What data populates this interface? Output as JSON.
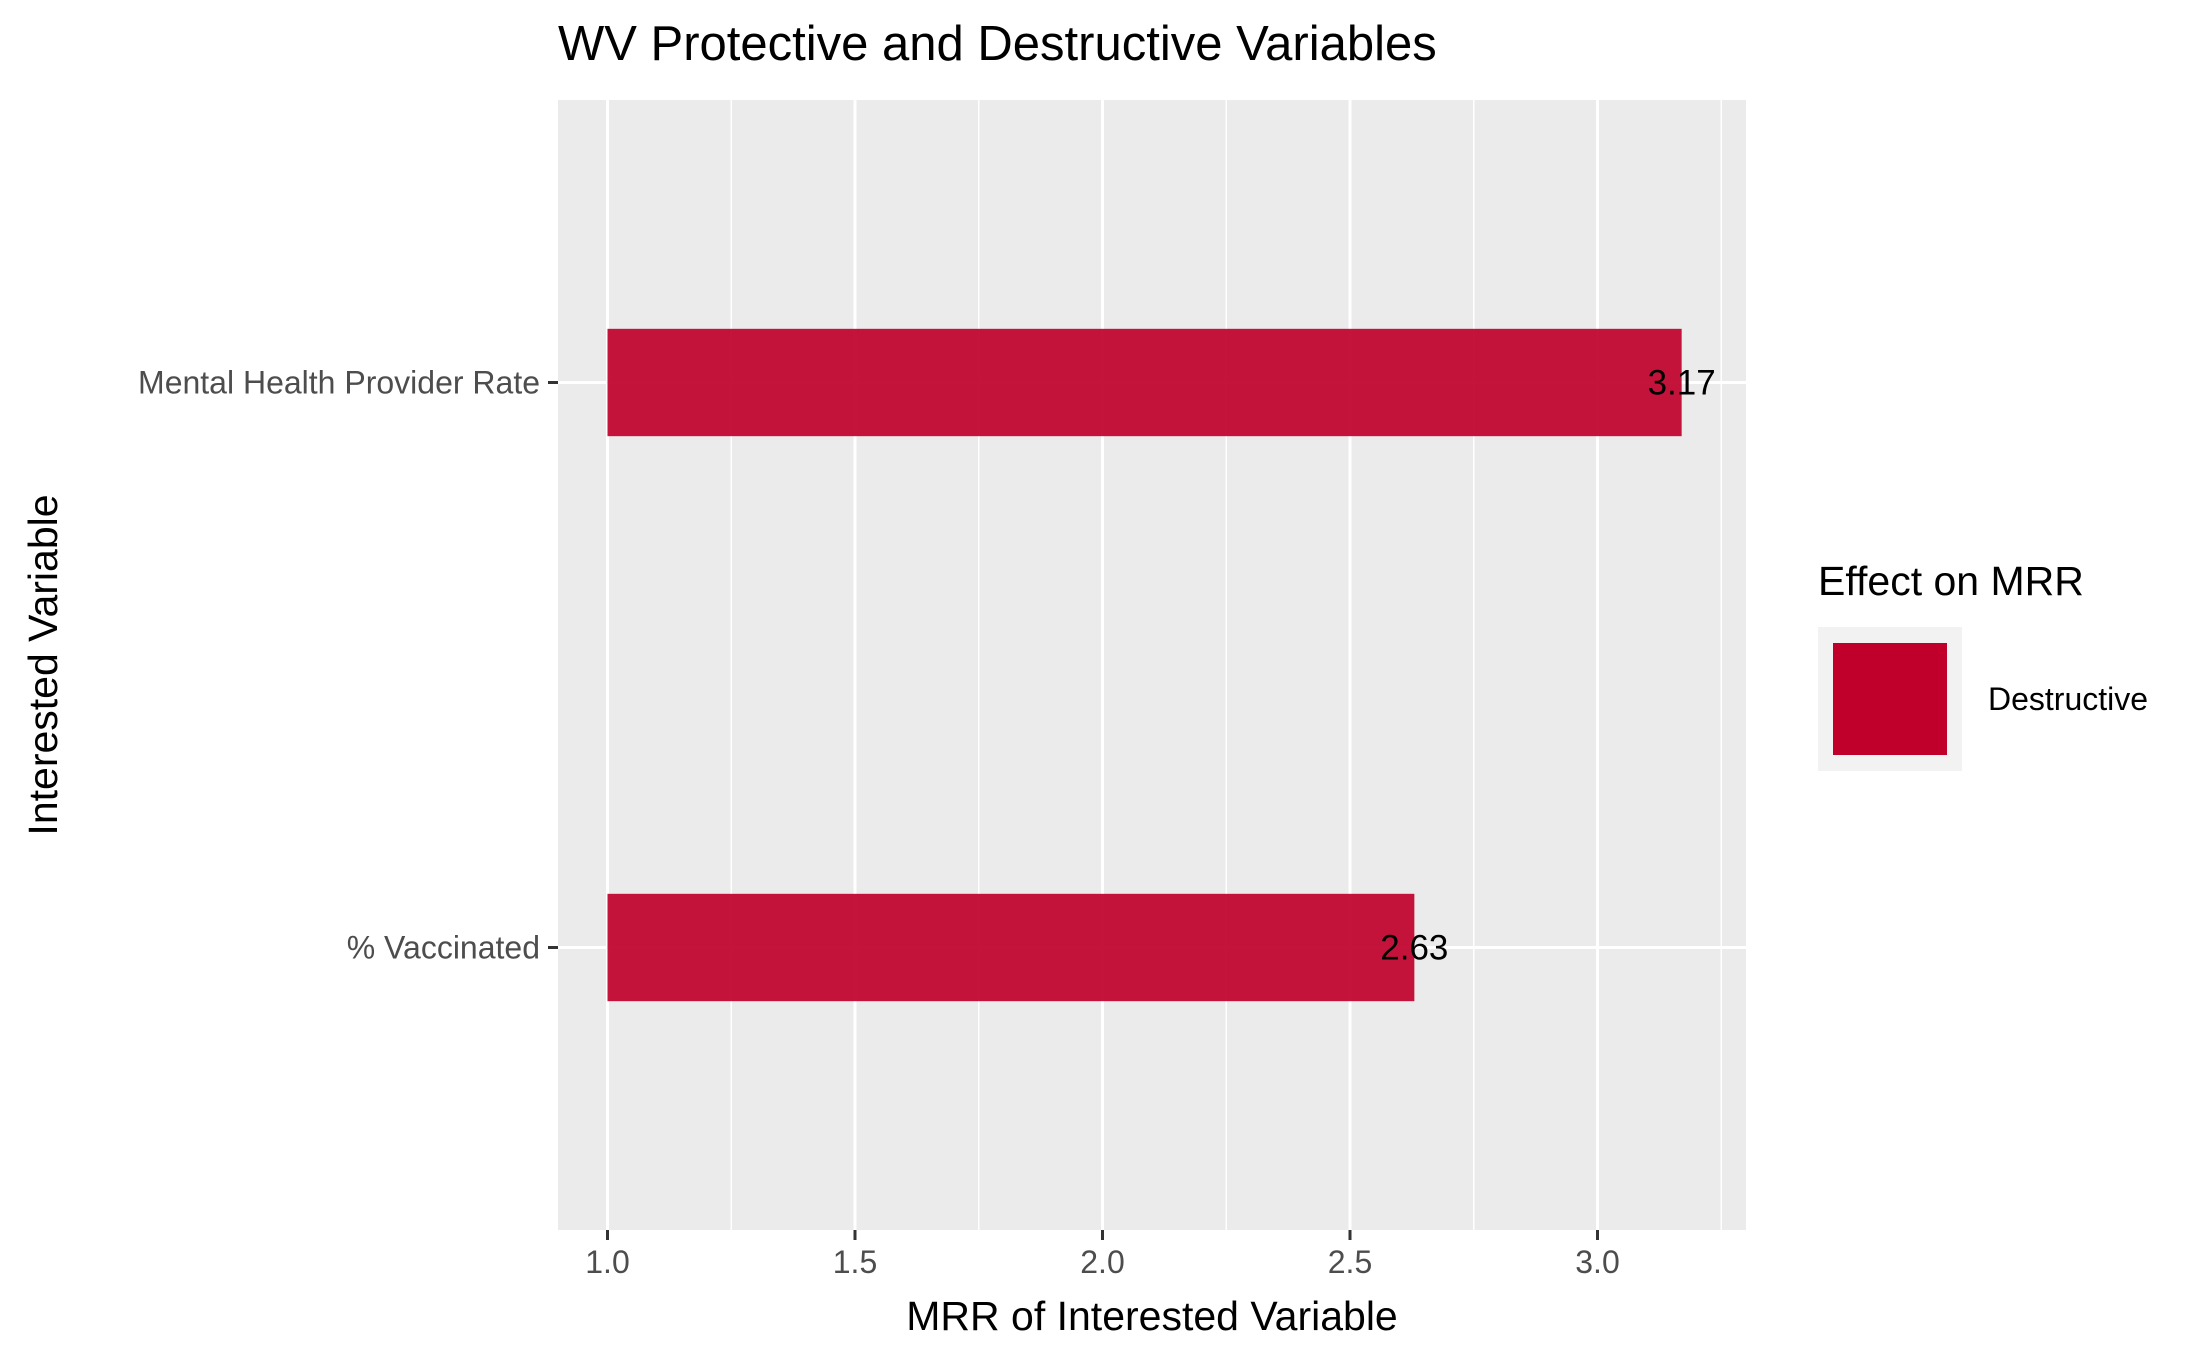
{
  "chart_data": {
    "type": "bar",
    "orientation": "horizontal",
    "title": "WV Protective and Destructive Variables",
    "xlabel": "MRR of Interested Variable",
    "ylabel": "Interested Variable",
    "categories": [
      "% Vaccinated",
      "Mental Health Provider Rate"
    ],
    "values": [
      2.63,
      3.17
    ],
    "baseline": 1.0,
    "data_labels": [
      "2.63",
      "3.17"
    ],
    "xlim": [
      0.9,
      3.3
    ],
    "x_ticks": [
      1.0,
      1.5,
      2.0,
      2.5,
      3.0
    ],
    "x_tick_labels": [
      "1.0",
      "1.5",
      "2.0",
      "2.5",
      "3.0"
    ],
    "grid": true,
    "legend": {
      "title": "Effect on MRR",
      "placement": "right",
      "entries": [
        {
          "label": "Destructive",
          "color": "#c0002a"
        }
      ]
    },
    "colors": {
      "bar": "#c0002a",
      "panel_background": "#ebebeb",
      "grid": "#ffffff"
    }
  }
}
